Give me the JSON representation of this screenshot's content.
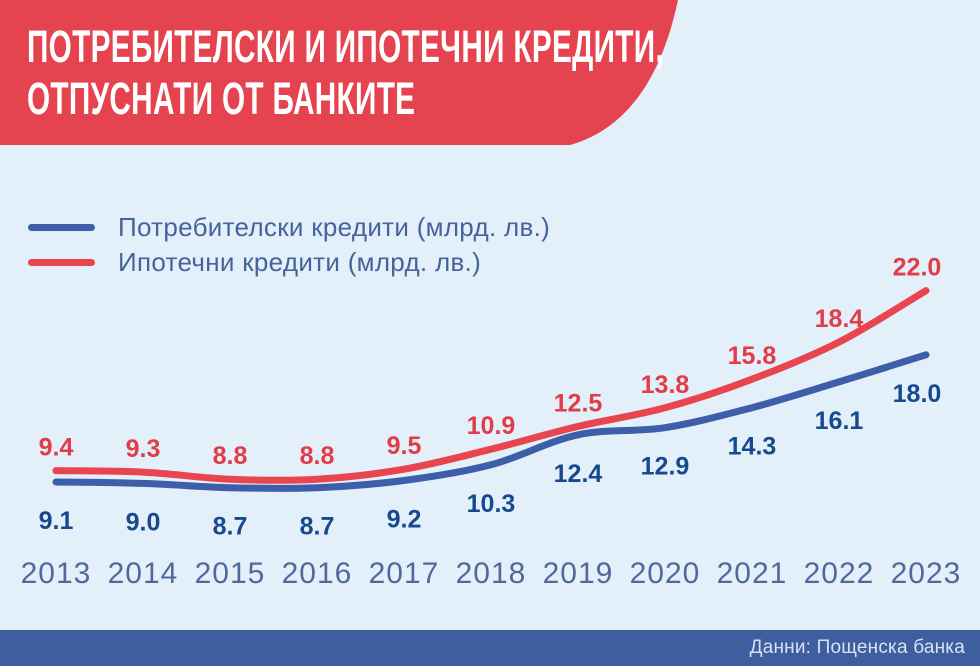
{
  "header": {
    "title_line1": "ПОТРЕБИТЕЛСКИ И ИПОТЕЧНИ КРЕДИТИ,",
    "title_line2": "ОТПУСНАТИ ОТ БАНКИТЕ",
    "banner_color": "#e5434f",
    "title_color": "#ffffff"
  },
  "legend": {
    "items": [
      {
        "label": "Потребителски кредити (млрд. лв.)",
        "color": "#3d5ea9"
      },
      {
        "label": "Ипотечни кредити (млрд. лв.)",
        "color": "#e8454f"
      }
    ]
  },
  "chart_data": {
    "type": "line",
    "title": "Потребителски и ипотечни кредити, отпуснати от банките",
    "unit": "млрд. лв.",
    "categories": [
      "2013",
      "2014",
      "2015",
      "2016",
      "2017",
      "2018",
      "2019",
      "2020",
      "2021",
      "2022",
      "2023"
    ],
    "series": [
      {
        "name": "Потребителски кредити (млрд. лв.)",
        "color": "#3d5ea9",
        "label_color": "#17498f",
        "label_position": "below",
        "values": [
          9.1,
          9.0,
          8.7,
          8.7,
          9.2,
          10.3,
          12.4,
          12.9,
          14.3,
          16.1,
          18.0
        ]
      },
      {
        "name": "Ипотечни кредити (млрд. лв.)",
        "color": "#e8454f",
        "label_color": "#e23c48",
        "label_position": "above",
        "values": [
          9.4,
          9.3,
          8.8,
          8.8,
          9.5,
          10.9,
          12.5,
          13.8,
          15.8,
          18.4,
          22.0
        ]
      }
    ],
    "value_label_decimals": 1,
    "x_label_color": "#51689e",
    "grid": false,
    "y_axis": "hidden",
    "legend_position": "top-left"
  },
  "footer": {
    "source_text": "Данни: Пощенска банка",
    "bar_color": "#3f5e9f",
    "text_color": "#d5e3f2"
  }
}
